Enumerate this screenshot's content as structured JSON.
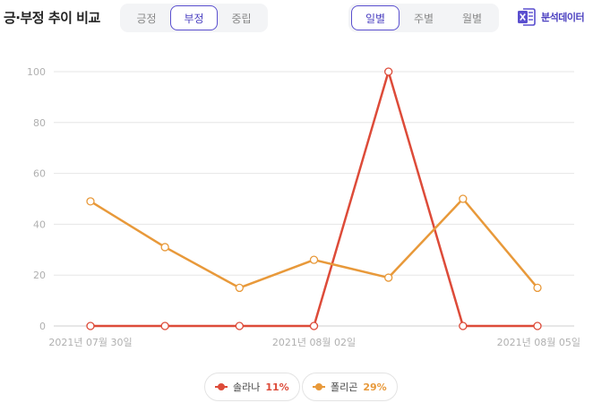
{
  "header": {
    "title": "긍·부정 추이 비교",
    "sentiment_tabs": [
      "긍정",
      "부정",
      "중립"
    ],
    "sentiment_active": 1,
    "period_tabs": [
      "일별",
      "주별",
      "월별"
    ],
    "period_active": 0,
    "analysis_label": "분석데이터",
    "analysis_icon": "excel-icon"
  },
  "chart_data": {
    "type": "line",
    "x": [
      "2021-07-30",
      "2021-07-31",
      "2021-08-01",
      "2021-08-02",
      "2021-08-03",
      "2021-08-04",
      "2021-08-05"
    ],
    "x_tick_labels": [
      {
        "index": 0,
        "label": "2021년 07월 30일"
      },
      {
        "index": 3,
        "label": "2021년 08월 02일"
      },
      {
        "index": 6,
        "label": "2021년 08월 05일"
      }
    ],
    "ylim": [
      0,
      100
    ],
    "yticks": [
      0,
      20,
      40,
      60,
      80,
      100
    ],
    "grid": true,
    "series": [
      {
        "name": "솔라나",
        "color": "#dd4b39",
        "values": [
          0,
          0,
          0,
          0,
          100,
          0,
          0
        ]
      },
      {
        "name": "폴리곤",
        "color": "#e8993a",
        "values": [
          49,
          31,
          15,
          26,
          19,
          50,
          15
        ]
      }
    ]
  },
  "legend": [
    {
      "name": "솔라나",
      "pct": "11%",
      "color": "#dd4b39"
    },
    {
      "name": "폴리곤",
      "pct": "29%",
      "color": "#e8993a"
    }
  ]
}
